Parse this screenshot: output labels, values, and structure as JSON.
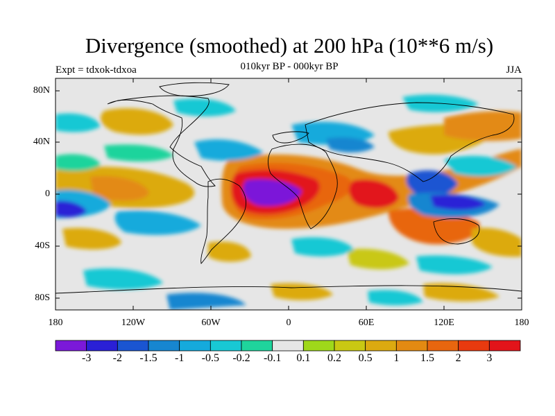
{
  "header": {
    "title": "Divergence (smoothed) at 200 hPa (10**6 m/s)",
    "subtitle": "010kyr BP - 000kyr BP",
    "left_label": "Expt = tdxok-tdxoa",
    "right_label": "JJA"
  },
  "axes": {
    "lat_labels": [
      "80N",
      "40N",
      "0",
      "40S",
      "80S"
    ],
    "lon_labels": [
      "180",
      "120W",
      "60W",
      "0",
      "60E",
      "120E",
      "180"
    ]
  },
  "colorbar": {
    "labels": [
      "-3",
      "-2",
      "-1.5",
      "-1",
      "-0.5",
      "-0.2",
      "-0.1",
      "0.1",
      "0.2",
      "0.5",
      "1",
      "1.5",
      "2",
      "3"
    ],
    "colors": [
      "#7b19d9",
      "#2a20d6",
      "#1a55d2",
      "#1786d0",
      "#15aadc",
      "#18c8d4",
      "#1fd49c",
      "#e6e6e6",
      "#9fd81a",
      "#c9c813",
      "#dcaa10",
      "#e38a12",
      "#e8660f",
      "#e83a0f",
      "#e2141a"
    ]
  },
  "map": {
    "background": "#e6e6e6",
    "coastline_color": "#000000"
  }
}
